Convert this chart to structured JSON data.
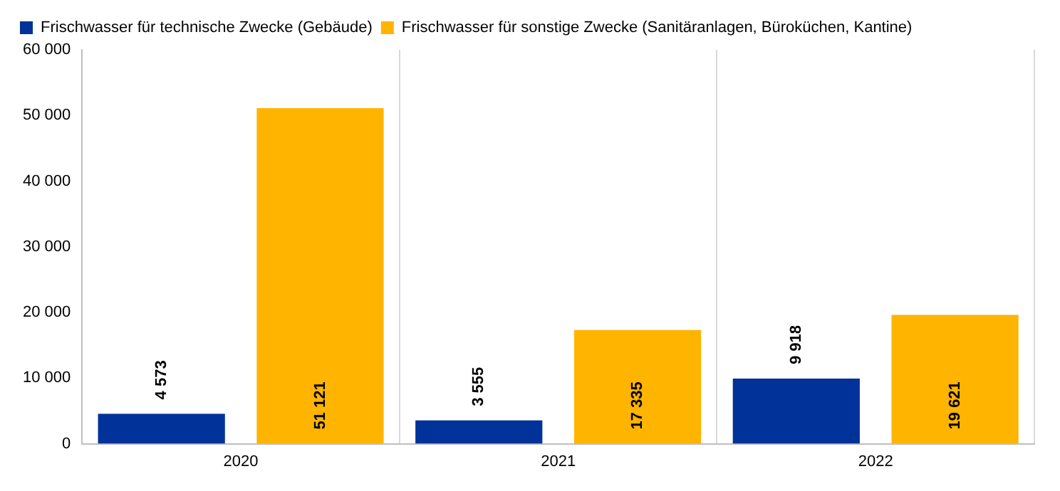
{
  "chart_data": {
    "type": "bar",
    "categories": [
      "2020",
      "2021",
      "2022"
    ],
    "series": [
      {
        "name": "Frischwasser für technische Zwecke (Gebäude)",
        "color": "#003299",
        "values": [
          4573,
          3555,
          9918
        ],
        "value_labels": [
          "4 573",
          "3 555",
          "9 918"
        ]
      },
      {
        "name": "Frischwasser für sonstige Zwecke (Sanitäranlagen, Büroküchen, Kantine)",
        "color": "#ffb400",
        "values": [
          51121,
          17335,
          19621
        ],
        "value_labels": [
          "51 121",
          "17 335",
          "19 621"
        ]
      }
    ],
    "ylim": [
      0,
      60000
    ],
    "yticks": [
      {
        "value": 0,
        "label": "0"
      },
      {
        "value": 10000,
        "label": "10 000"
      },
      {
        "value": 20000,
        "label": "20 000"
      },
      {
        "value": 30000,
        "label": "30 000"
      },
      {
        "value": 40000,
        "label": "40 000"
      },
      {
        "value": 50000,
        "label": "50 000"
      },
      {
        "value": 60000,
        "label": "60 000"
      }
    ],
    "grid": "x",
    "legend": "top left"
  }
}
